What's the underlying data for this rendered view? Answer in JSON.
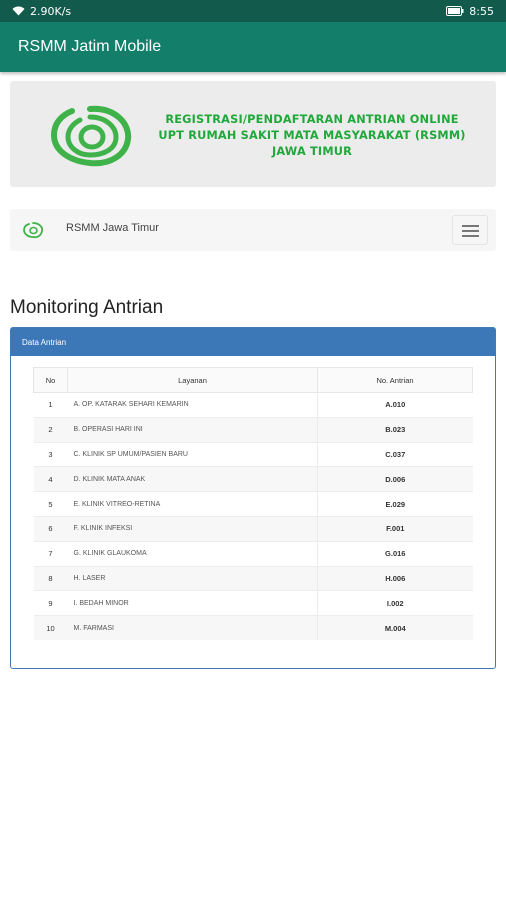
{
  "status": {
    "speed": "2.90K/s",
    "time": "8:55"
  },
  "app": {
    "title": "RSMM Jatim Mobile"
  },
  "banner": {
    "line1": "REGISTRASI/PENDAFTARAN ANTRIAN ONLINE",
    "line2": "UPT RUMAH SAKIT MATA MASYARAKAT (RSMM)",
    "line3": "JAWA TIMUR"
  },
  "navbar": {
    "title": "RSMM Jawa Timur"
  },
  "page": {
    "title": "Monitoring Antrian"
  },
  "panel": {
    "heading": "Data Antrian"
  },
  "table": {
    "headers": {
      "no": "No",
      "layanan": "Layanan",
      "antrian": "No. Antrian"
    },
    "rows": [
      {
        "no": "1",
        "layanan": "A. OP. KATARAK SEHARI KEMARIN",
        "antrian": "A.010"
      },
      {
        "no": "2",
        "layanan": "B. OPERASI HARI INI",
        "antrian": "B.023"
      },
      {
        "no": "3",
        "layanan": "C. KLINIK SP UMUM/PASIEN BARU",
        "antrian": "C.037"
      },
      {
        "no": "4",
        "layanan": "D. KLINIK MATA ANAK",
        "antrian": "D.006"
      },
      {
        "no": "5",
        "layanan": "E. KLINIK VITREO-RETINA",
        "antrian": "E.029"
      },
      {
        "no": "6",
        "layanan": "F. KLINIK INFEKSI",
        "antrian": "F.001"
      },
      {
        "no": "7",
        "layanan": "G. KLINIK GLAUKOMA",
        "antrian": "G.016"
      },
      {
        "no": "8",
        "layanan": "H. LASER",
        "antrian": "H.006"
      },
      {
        "no": "9",
        "layanan": "I. BEDAH MINOR",
        "antrian": "I.002"
      },
      {
        "no": "10",
        "layanan": "M. FARMASI",
        "antrian": "M.004"
      }
    ]
  },
  "colors": {
    "appbar": "#137f6a",
    "statusbar": "#125a4c",
    "brand_green": "#21a83b",
    "panel_blue": "#3c78b8"
  },
  "icons": {
    "wifi": "wifi-icon",
    "battery": "battery-icon",
    "logo": "rsmm-logo-icon",
    "menu": "hamburger-icon"
  }
}
